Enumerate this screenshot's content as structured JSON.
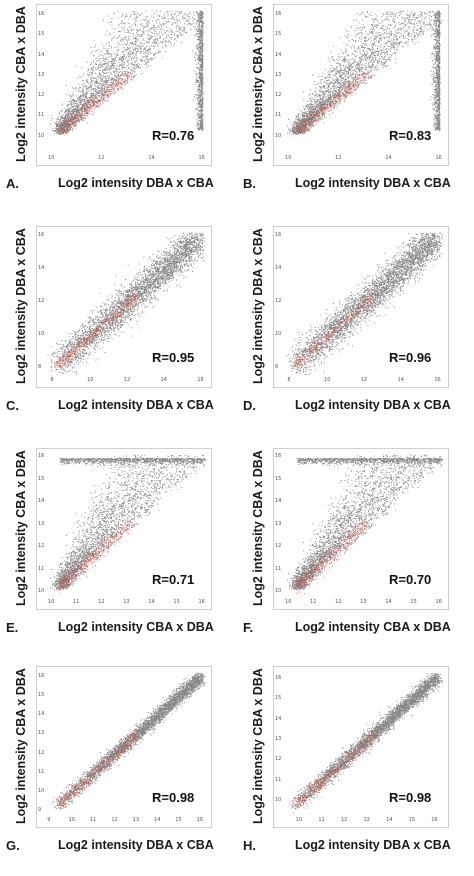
{
  "chart_data": [
    {
      "type": "scatter",
      "panel": "A.",
      "xlabel": "Log2 intensity DBA x CBA",
      "ylabel": "Log2 intensity CBA x DBA",
      "annotation": "R=0.76",
      "xlim": [
        9.8,
        16.1
      ],
      "ylim": [
        9.2,
        16.2
      ],
      "xticks": [
        "10",
        "12",
        "14",
        "16"
      ],
      "yticks": [
        "10",
        "11",
        "12",
        "13",
        "14",
        "15",
        "16"
      ],
      "shape": "spread",
      "saturate": "right",
      "highlight_color": "#e03020"
    },
    {
      "type": "scatter",
      "panel": "B.",
      "xlabel": "Log2 intensity DBA x CBA",
      "ylabel": "Log2 intensity CBA x DBA",
      "annotation": "R=0.83",
      "xlim": [
        9.8,
        16.1
      ],
      "ylim": [
        9.2,
        16.2
      ],
      "xticks": [
        "10",
        "12",
        "14",
        "16"
      ],
      "yticks": [
        "10",
        "11",
        "12",
        "13",
        "14",
        "15",
        "16"
      ],
      "shape": "spread2",
      "saturate": "right",
      "highlight_color": "#e03020"
    },
    {
      "type": "scatter",
      "panel": "C.",
      "xlabel": "Log2 intensity DBA x CBA",
      "ylabel": "Log2 intensity DBA x CBA",
      "annotation": "R=0.95",
      "xlim": [
        7.6,
        16.2
      ],
      "ylim": [
        7.6,
        16.2
      ],
      "xticks": [
        "8",
        "10",
        "12",
        "14",
        "16"
      ],
      "yticks": [
        "8",
        "10",
        "12",
        "14",
        "16"
      ],
      "shape": "tight",
      "saturate": "none",
      "highlight_color": "#e03020"
    },
    {
      "type": "scatter",
      "panel": "D.",
      "xlabel": "Log2 intensity DBA x CBA",
      "ylabel": "Log2 intensity DBA x CBA",
      "annotation": "R=0.96",
      "xlim": [
        7.6,
        16.2
      ],
      "ylim": [
        7.6,
        16.2
      ],
      "xticks": [
        "8",
        "10",
        "12",
        "14",
        "16"
      ],
      "yticks": [
        "8",
        "10",
        "12",
        "14",
        "16"
      ],
      "shape": "tight",
      "saturate": "none",
      "highlight_color": "#e03020"
    },
    {
      "type": "scatter",
      "panel": "E.",
      "xlabel": "Log2 intensity CBA x DBA",
      "ylabel": "Log2 intensity CBA x DBA",
      "annotation": "R=0.71",
      "xlim": [
        9.8,
        16.1
      ],
      "ylim": [
        9.8,
        16.1
      ],
      "xticks": [
        "10",
        "11",
        "12",
        "13",
        "14",
        "15",
        "16"
      ],
      "yticks": [
        "10",
        "11",
        "12",
        "13",
        "14",
        "15",
        "16"
      ],
      "shape": "spread",
      "saturate": "top",
      "highlight_color": "#e03020"
    },
    {
      "type": "scatter",
      "panel": "F.",
      "xlabel": "Log2 intensity CBA x DBA",
      "ylabel": "Log2 intensity CBA x DBA",
      "annotation": "R=0.70",
      "xlim": [
        9.8,
        16.1
      ],
      "ylim": [
        9.8,
        16.1
      ],
      "xticks": [
        "10",
        "11",
        "12",
        "13",
        "14",
        "15",
        "16"
      ],
      "yticks": [
        "10",
        "11",
        "12",
        "13",
        "14",
        "15",
        "16"
      ],
      "shape": "spread2",
      "saturate": "top",
      "highlight_color": "#e03020"
    },
    {
      "type": "scatter",
      "panel": "G.",
      "xlabel": "Log2 intensity DBA x CBA",
      "ylabel": "Log2 intensity CBA x DBA",
      "annotation": "R=0.98",
      "xlim": [
        8.8,
        16.2
      ],
      "ylim": [
        8.8,
        16.2
      ],
      "xticks": [
        "9",
        "10",
        "11",
        "12",
        "13",
        "14",
        "15",
        "16"
      ],
      "yticks": [
        "9",
        "10",
        "11",
        "12",
        "13",
        "14",
        "15",
        "16"
      ],
      "shape": "vtight",
      "saturate": "none",
      "highlight_color": "#e03020"
    },
    {
      "type": "scatter",
      "panel": "H.",
      "xlabel": "Log2 intensity DBA x CBA",
      "ylabel": "Log2 intensity CBA x DBA",
      "annotation": "R=0.98",
      "xlim": [
        9.3,
        16.3
      ],
      "ylim": [
        9.3,
        16.3
      ],
      "xticks": [
        "10",
        "11",
        "12",
        "13",
        "14",
        "15",
        "16"
      ],
      "yticks": [
        "10",
        "11",
        "12",
        "13",
        "14",
        "15",
        "16"
      ],
      "shape": "vtight",
      "saturate": "none",
      "highlight_color": "#e03020"
    }
  ]
}
